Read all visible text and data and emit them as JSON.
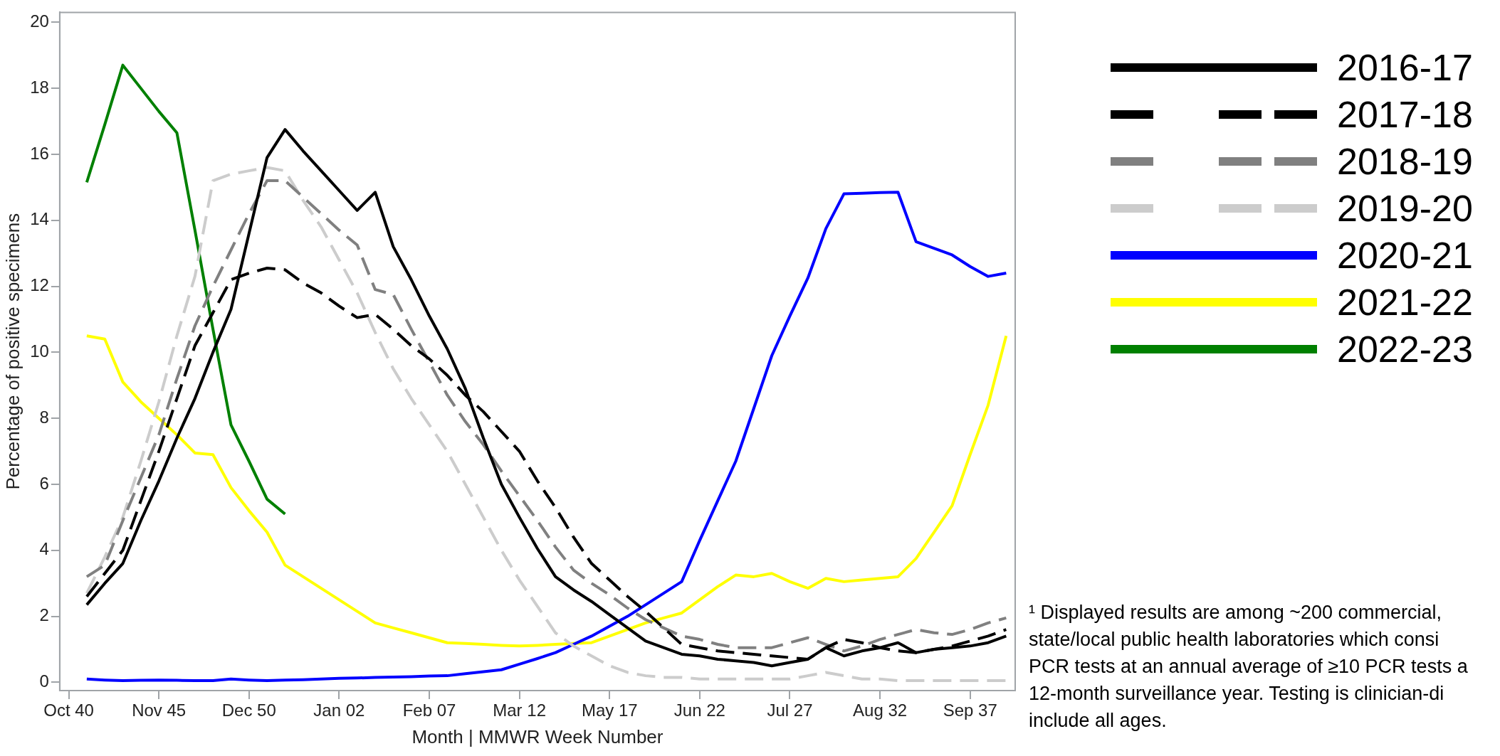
{
  "chart_data": {
    "type": "line",
    "xlabel": "Month | MMWR Week Number",
    "ylabel": "Percentage of positive specimens",
    "categories": [
      "Oct 40",
      null,
      null,
      null,
      null,
      "Nov 45",
      null,
      null,
      null,
      null,
      "Dec 50",
      null,
      null,
      null,
      null,
      "Jan 02",
      null,
      null,
      null,
      null,
      "Feb 07",
      null,
      null,
      null,
      null,
      "Mar 12",
      null,
      null,
      null,
      null,
      "May 17",
      null,
      null,
      null,
      null,
      "Jun 22",
      null,
      null,
      null,
      null,
      "Jul 27",
      null,
      null,
      null,
      null,
      "Aug 32",
      null,
      null,
      null,
      null,
      "Sep 37",
      null,
      null
    ],
    "ylim": [
      -0.25,
      20.3
    ],
    "yticks": [
      0,
      2,
      4,
      6,
      8,
      10,
      12,
      14,
      16,
      18,
      20
    ],
    "legend": "right",
    "series": [
      {
        "name": "2016-17",
        "color": "#000000",
        "line_style": "solid",
        "values": [
          null,
          2.35,
          3.0,
          3.6,
          4.9,
          6.1,
          7.4,
          8.6,
          10.0,
          11.3,
          13.6,
          15.9,
          16.75,
          16.1,
          15.5,
          14.9,
          14.3,
          14.85,
          13.2,
          12.2,
          11.1,
          10.1,
          8.9,
          7.4,
          6.0,
          5.0,
          4.05,
          3.2,
          2.8,
          2.45,
          2.05,
          1.65,
          1.25,
          1.05,
          0.85,
          0.8,
          0.7,
          0.65,
          0.6,
          0.5,
          0.6,
          0.7,
          1.05,
          0.8,
          0.95,
          1.05,
          1.2,
          0.9,
          1.0,
          1.05,
          1.1,
          1.2,
          1.4
        ]
      },
      {
        "name": "2017-18",
        "color": "#000000",
        "line_style": "dashed",
        "values": [
          null,
          2.6,
          3.3,
          4.0,
          5.5,
          7.0,
          8.6,
          10.2,
          11.2,
          12.2,
          12.4,
          12.55,
          12.5,
          12.1,
          11.8,
          11.4,
          11.05,
          11.15,
          10.7,
          10.2,
          9.8,
          9.3,
          8.7,
          8.2,
          7.6,
          7.0,
          6.1,
          5.3,
          4.4,
          3.6,
          3.1,
          2.6,
          2.15,
          1.65,
          1.15,
          1.05,
          0.95,
          0.9,
          0.85,
          0.8,
          0.75,
          0.7,
          1.05,
          1.3,
          1.2,
          1.05,
          0.95,
          0.9,
          1.0,
          1.1,
          1.25,
          1.4,
          1.6
        ]
      },
      {
        "name": "2018-19",
        "color": "#808080",
        "line_style": "dashed",
        "values": [
          null,
          3.2,
          3.55,
          4.9,
          6.2,
          7.5,
          9.2,
          10.8,
          12.0,
          13.1,
          14.2,
          15.2,
          15.2,
          14.7,
          14.2,
          13.7,
          13.25,
          11.9,
          11.75,
          10.7,
          9.7,
          8.7,
          7.9,
          7.2,
          6.4,
          5.65,
          4.9,
          4.1,
          3.4,
          3.0,
          2.65,
          2.25,
          1.9,
          1.65,
          1.4,
          1.3,
          1.15,
          1.05,
          1.05,
          1.05,
          1.2,
          1.35,
          1.15,
          0.95,
          1.1,
          1.3,
          1.45,
          1.6,
          1.5,
          1.45,
          1.6,
          1.8,
          1.95
        ]
      },
      {
        "name": "2019-20",
        "color": "#cccccc",
        "line_style": "dashed",
        "values": [
          null,
          2.7,
          3.8,
          5.0,
          6.7,
          8.5,
          10.5,
          12.3,
          15.2,
          15.4,
          15.5,
          15.6,
          15.5,
          14.6,
          13.8,
          12.8,
          11.8,
          10.6,
          9.5,
          8.6,
          7.8,
          7.0,
          6.0,
          5.0,
          4.0,
          3.1,
          2.3,
          1.5,
          1.1,
          0.8,
          0.5,
          0.3,
          0.2,
          0.15,
          0.15,
          0.1,
          0.1,
          0.1,
          0.1,
          0.1,
          0.1,
          0.2,
          0.3,
          0.2,
          0.1,
          0.1,
          0.05,
          0.05,
          0.05,
          0.05,
          0.05,
          0.05,
          0.05
        ]
      },
      {
        "name": "2020-21",
        "color": "#0000ff",
        "line_style": "solid",
        "values": [
          null,
          0.1,
          0.07,
          0.05,
          0.06,
          0.07,
          0.06,
          0.05,
          0.05,
          0.1,
          0.07,
          0.05,
          0.07,
          0.08,
          0.1,
          0.12,
          0.13,
          0.15,
          0.16,
          0.17,
          0.19,
          0.2,
          0.26,
          0.32,
          0.38,
          0.55,
          0.72,
          0.9,
          1.15,
          1.4,
          1.7,
          2.0,
          2.35,
          2.7,
          3.05,
          4.3,
          5.5,
          6.7,
          8.3,
          9.9,
          11.1,
          12.25,
          13.75,
          14.8,
          14.82,
          14.84,
          14.85,
          13.35,
          13.15,
          12.95,
          12.6,
          12.3,
          12.4
        ]
      },
      {
        "name": "2021-22",
        "color": "#ffff00",
        "line_style": "solid",
        "values": [
          null,
          10.5,
          10.4,
          9.1,
          8.5,
          8.0,
          7.5,
          6.95,
          6.9,
          5.9,
          5.2,
          4.55,
          3.55,
          3.2,
          2.85,
          2.5,
          2.15,
          1.8,
          1.65,
          1.5,
          1.35,
          1.2,
          1.18,
          1.15,
          1.12,
          1.1,
          1.12,
          1.15,
          1.18,
          1.2,
          1.4,
          1.6,
          1.8,
          1.95,
          2.1,
          2.5,
          2.9,
          3.25,
          3.2,
          3.3,
          3.05,
          2.85,
          3.15,
          3.05,
          3.1,
          3.15,
          3.2,
          3.75,
          4.55,
          5.35,
          6.9,
          8.4,
          10.5
        ]
      },
      {
        "name": "2022-23",
        "color": "#008000",
        "line_style": "solid",
        "values": [
          null,
          15.15,
          16.9,
          18.7,
          18.0,
          17.3,
          16.65,
          13.7,
          10.7,
          7.8,
          6.7,
          5.55,
          5.1,
          null,
          null,
          null,
          null,
          null,
          null,
          null,
          null,
          null,
          null,
          null,
          null,
          null,
          null,
          null,
          null,
          null,
          null,
          null,
          null,
          null,
          null,
          null,
          null,
          null,
          null,
          null,
          null,
          null,
          null,
          null,
          null,
          null,
          null,
          null,
          null,
          null,
          null,
          null,
          null
        ]
      }
    ],
    "annotations": [
      "¹ Displayed results are among ~200 commercial,\nstate/local public health laboratories which consi\nPCR tests at an annual average of ≥10 PCR tests a\n12-month surveillance year. Testing is clinician-di\ninclude all ages."
    ]
  }
}
